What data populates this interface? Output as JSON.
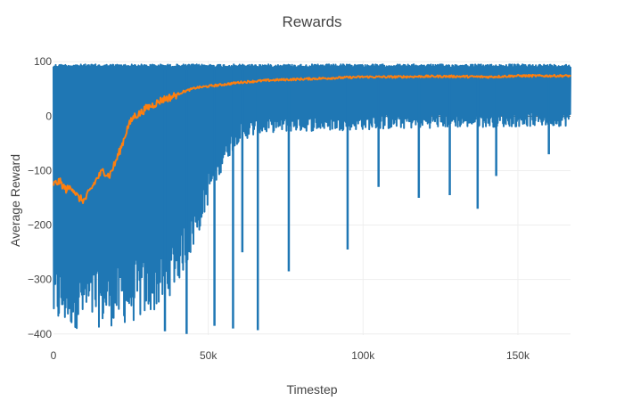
{
  "chart_data": {
    "type": "line",
    "title": "Rewards",
    "xlabel": "Timestep",
    "ylabel": "Average Reward",
    "xlim": [
      0,
      167000
    ],
    "ylim": [
      -402,
      102
    ],
    "x_ticks": [
      0,
      50000,
      100000,
      150000
    ],
    "x_tick_labels": [
      "0",
      "50k",
      "100k",
      "150k"
    ],
    "y_ticks": [
      100,
      0,
      -100,
      -200,
      -300,
      -400
    ],
    "y_tick_labels": [
      "100",
      "0",
      "−100",
      "−200",
      "−300",
      "−400"
    ],
    "grid": true,
    "legend": "none",
    "series": [
      {
        "color": "#1f77b4",
        "description": "raw episode reward, oscillates between envelope bounds",
        "upper_envelope": {
          "x": [
            0,
            5000,
            10000,
            20000,
            30000,
            40000,
            167000
          ],
          "y": [
            95,
            95,
            95,
            95,
            95,
            95,
            95
          ]
        },
        "lower_envelope": {
          "x": [
            0,
            10000,
            20000,
            25000,
            30000,
            35000,
            40000,
            45000,
            50000,
            55000,
            60000,
            70000,
            80000,
            100000,
            120000,
            140000,
            167000
          ],
          "y": [
            -390,
            -390,
            -385,
            -380,
            -370,
            -350,
            -310,
            -250,
            -160,
            -90,
            -45,
            -30,
            -28,
            -25,
            -22,
            -20,
            -18
          ]
        },
        "spikes": [
          {
            "x": 36000,
            "y": -395
          },
          {
            "x": 43000,
            "y": -400
          },
          {
            "x": 52000,
            "y": -385
          },
          {
            "x": 58000,
            "y": -390
          },
          {
            "x": 61000,
            "y": -250
          },
          {
            "x": 66000,
            "y": -393
          },
          {
            "x": 76000,
            "y": -285
          },
          {
            "x": 95000,
            "y": -245
          },
          {
            "x": 105000,
            "y": -130
          },
          {
            "x": 118000,
            "y": -150
          },
          {
            "x": 128000,
            "y": -145
          },
          {
            "x": 137000,
            "y": -170
          },
          {
            "x": 143000,
            "y": -110
          },
          {
            "x": 160000,
            "y": -70
          }
        ]
      },
      {
        "color": "#ff7f0e",
        "description": "moving average reward",
        "x": [
          0,
          2000,
          4000,
          6000,
          8000,
          10000,
          12000,
          14000,
          16000,
          18000,
          20000,
          22000,
          24000,
          26000,
          28000,
          30000,
          32000,
          35000,
          38000,
          42000,
          46000,
          50000,
          55000,
          60000,
          70000,
          80000,
          90000,
          100000,
          110000,
          120000,
          130000,
          140000,
          150000,
          160000,
          167000
        ],
        "y": [
          -125,
          -120,
          -135,
          -130,
          -150,
          -155,
          -135,
          -115,
          -100,
          -110,
          -85,
          -55,
          -20,
          0,
          5,
          15,
          20,
          30,
          35,
          45,
          52,
          55,
          58,
          62,
          66,
          68,
          70,
          72,
          72,
          73,
          73,
          72,
          74,
          74,
          74
        ]
      }
    ]
  }
}
